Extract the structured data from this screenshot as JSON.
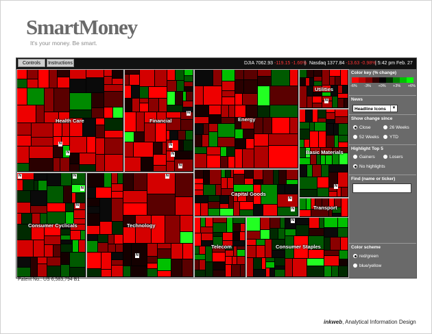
{
  "brand": {
    "name": "SmartMoney",
    "tagline": "It's your money. Be smart."
  },
  "topbar": {
    "controls_label": "Controls",
    "instructions_label": "Instructions",
    "djia": {
      "label": "DJIA",
      "value": "7062.93",
      "change": "-119.15",
      "pct": "-1.66%"
    },
    "nasdaq": {
      "label": "Nasdaq",
      "value": "1377.84",
      "change": "-13.63",
      "pct": "-0.98%"
    },
    "time": "5:42 pm",
    "date": "Feb. 27"
  },
  "sectors": [
    {
      "name": "Health Care"
    },
    {
      "name": "Financial"
    },
    {
      "name": "Energy"
    },
    {
      "name": "Utilities"
    },
    {
      "name": "Basic Materials"
    },
    {
      "name": "Consumer Cyclicals"
    },
    {
      "name": "Technology"
    },
    {
      "name": "Capital Goods"
    },
    {
      "name": "Transport"
    },
    {
      "name": "Telecom"
    },
    {
      "name": "Consumer Staples"
    }
  ],
  "news_badge": "N",
  "panel": {
    "color_key": {
      "title": "Color key (% change)",
      "colors": [
        "#ff0000",
        "#c00000",
        "#800000",
        "#300000",
        "#000000",
        "#003000",
        "#008000",
        "#00c000",
        "#00ff00"
      ],
      "labels": [
        "-6%",
        "-3%",
        "+0%",
        "+3%",
        "+6%"
      ]
    },
    "news": {
      "title": "News",
      "selected": "Headline Icons"
    },
    "show_change": {
      "title": "Show change since",
      "options": [
        {
          "label": "Close",
          "selected": true
        },
        {
          "label": "26 Weeks",
          "selected": false
        },
        {
          "label": "52 Weeks",
          "selected": false
        },
        {
          "label": "YTD",
          "selected": false
        }
      ]
    },
    "highlight": {
      "title": "Highlight Top 5",
      "options": [
        {
          "label": "Gainers",
          "selected": false
        },
        {
          "label": "Losers",
          "selected": false
        },
        {
          "label": "No highlights",
          "selected": true
        }
      ]
    },
    "find": {
      "title": "Find (name or ticker)",
      "value": ""
    },
    "color_scheme": {
      "title": "Color scheme",
      "options": [
        {
          "label": "red/green",
          "selected": true
        },
        {
          "label": "blue/yellow",
          "selected": false
        }
      ]
    }
  },
  "footer": {
    "patent": "Patent No.: US 6,583,794 B1",
    "credit_brand": "inkweb",
    "credit_text": "Analytical Information Design"
  }
}
